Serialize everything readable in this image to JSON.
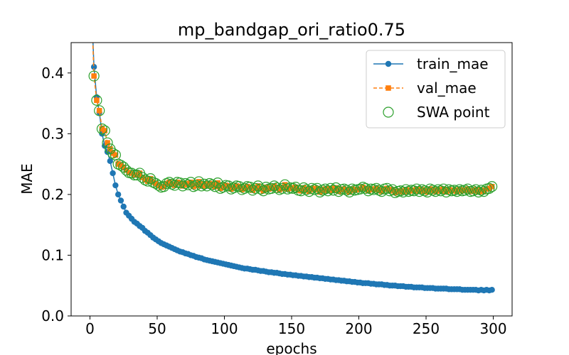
{
  "chart_data": {
    "type": "line",
    "title": "mp_bandgap_ori_ratio0.75",
    "xlabel": "epochs",
    "ylabel": "MAE",
    "xlim": [
      -14,
      314
    ],
    "ylim": [
      0.0,
      0.45
    ],
    "x_ticks": [
      0,
      50,
      100,
      150,
      200,
      250,
      300
    ],
    "x_tick_labels": [
      "0",
      "50",
      "100",
      "150",
      "200",
      "250",
      "300"
    ],
    "y_ticks": [
      0.0,
      0.1,
      0.2,
      0.3,
      0.4
    ],
    "y_tick_labels": [
      "0.0",
      "0.1",
      "0.2",
      "0.3",
      "0.4"
    ],
    "grid": false,
    "legend_position": "top-right",
    "colors": {
      "train": "#1f77b4",
      "val": "#ff7f0e",
      "swa": "#2ca02c"
    },
    "legend": {
      "train_label": "train_mae",
      "val_label": "val_mae",
      "swa_label": "SWA point"
    },
    "series": [
      {
        "name": "train_mae",
        "x": [
          1,
          3,
          5,
          7,
          9,
          11,
          13,
          15,
          17,
          19,
          21,
          23,
          25,
          27,
          29,
          31,
          33,
          35,
          37,
          39,
          41,
          43,
          45,
          47,
          49,
          51,
          53,
          55,
          57,
          59,
          61,
          63,
          65,
          67,
          69,
          71,
          73,
          75,
          77,
          79,
          81,
          83,
          85,
          87,
          89,
          91,
          93,
          95,
          97,
          99,
          101,
          103,
          105,
          107,
          109,
          111,
          113,
          115,
          117,
          119,
          121,
          123,
          125,
          127,
          129,
          131,
          133,
          135,
          137,
          139,
          141,
          143,
          145,
          147,
          149,
          151,
          153,
          155,
          157,
          159,
          161,
          163,
          165,
          167,
          169,
          171,
          173,
          175,
          177,
          179,
          181,
          183,
          185,
          187,
          189,
          191,
          193,
          195,
          197,
          199,
          201,
          203,
          205,
          207,
          209,
          211,
          213,
          215,
          217,
          219,
          221,
          223,
          225,
          227,
          229,
          231,
          233,
          235,
          237,
          239,
          241,
          243,
          245,
          247,
          249,
          251,
          253,
          255,
          257,
          259,
          261,
          263,
          265,
          267,
          269,
          271,
          273,
          275,
          277,
          279,
          281,
          283,
          285,
          287,
          289,
          291,
          293,
          295,
          297,
          299
        ],
        "y": [
          0.52,
          0.41,
          0.36,
          0.335,
          0.3,
          0.28,
          0.27,
          0.255,
          0.235,
          0.215,
          0.2,
          0.19,
          0.18,
          0.17,
          0.165,
          0.16,
          0.155,
          0.152,
          0.148,
          0.145,
          0.14,
          0.137,
          0.133,
          0.129,
          0.126,
          0.123,
          0.12,
          0.118,
          0.116,
          0.114,
          0.112,
          0.11,
          0.108,
          0.106,
          0.105,
          0.103,
          0.102,
          0.1,
          0.099,
          0.097,
          0.096,
          0.095,
          0.093,
          0.092,
          0.091,
          0.09,
          0.089,
          0.088,
          0.087,
          0.086,
          0.085,
          0.084,
          0.083,
          0.082,
          0.081,
          0.08,
          0.079,
          0.078,
          0.078,
          0.077,
          0.076,
          0.076,
          0.075,
          0.074,
          0.074,
          0.073,
          0.072,
          0.072,
          0.071,
          0.071,
          0.07,
          0.069,
          0.069,
          0.068,
          0.068,
          0.067,
          0.067,
          0.066,
          0.066,
          0.065,
          0.065,
          0.064,
          0.064,
          0.063,
          0.063,
          0.062,
          0.062,
          0.061,
          0.061,
          0.06,
          0.06,
          0.059,
          0.059,
          0.058,
          0.058,
          0.057,
          0.057,
          0.056,
          0.056,
          0.055,
          0.055,
          0.054,
          0.054,
          0.054,
          0.053,
          0.053,
          0.052,
          0.052,
          0.052,
          0.051,
          0.051,
          0.05,
          0.05,
          0.05,
          0.049,
          0.049,
          0.049,
          0.048,
          0.048,
          0.048,
          0.047,
          0.047,
          0.047,
          0.047,
          0.046,
          0.046,
          0.046,
          0.046,
          0.045,
          0.045,
          0.045,
          0.045,
          0.045,
          0.044,
          0.044,
          0.044,
          0.044,
          0.044,
          0.043,
          0.043,
          0.043,
          0.043,
          0.043,
          0.043,
          0.042,
          0.043,
          0.042,
          0.043,
          0.042,
          0.043
        ]
      },
      {
        "name": "val_mae",
        "x": [
          1,
          3,
          5,
          7,
          9,
          11,
          13,
          15,
          17,
          19,
          21,
          23,
          25,
          27,
          29,
          31,
          33,
          35,
          37,
          39,
          41,
          43,
          45,
          47,
          49,
          51,
          53,
          55,
          57,
          59,
          61,
          63,
          65,
          67,
          69,
          71,
          73,
          75,
          77,
          79,
          81,
          83,
          85,
          87,
          89,
          91,
          93,
          95,
          97,
          99,
          101,
          103,
          105,
          107,
          109,
          111,
          113,
          115,
          117,
          119,
          121,
          123,
          125,
          127,
          129,
          131,
          133,
          135,
          137,
          139,
          141,
          143,
          145,
          147,
          149,
          151,
          153,
          155,
          157,
          159,
          161,
          163,
          165,
          167,
          169,
          171,
          173,
          175,
          177,
          179,
          181,
          183,
          185,
          187,
          189,
          191,
          193,
          195,
          197,
          199,
          201,
          203,
          205,
          207,
          209,
          211,
          213,
          215,
          217,
          219,
          221,
          223,
          225,
          227,
          229,
          231,
          233,
          235,
          237,
          239,
          241,
          243,
          245,
          247,
          249,
          251,
          253,
          255,
          257,
          259,
          261,
          263,
          265,
          267,
          269,
          271,
          273,
          275,
          277,
          279,
          281,
          283,
          285,
          287,
          289,
          291,
          293,
          295,
          297,
          299
        ],
        "y": [
          0.52,
          0.395,
          0.355,
          0.338,
          0.308,
          0.305,
          0.285,
          0.275,
          0.268,
          0.265,
          0.25,
          0.248,
          0.245,
          0.24,
          0.236,
          0.235,
          0.232,
          0.232,
          0.235,
          0.228,
          0.224,
          0.222,
          0.226,
          0.22,
          0.218,
          0.215,
          0.212,
          0.213,
          0.218,
          0.22,
          0.217,
          0.215,
          0.22,
          0.219,
          0.214,
          0.218,
          0.216,
          0.22,
          0.213,
          0.215,
          0.221,
          0.214,
          0.217,
          0.214,
          0.218,
          0.216,
          0.213,
          0.219,
          0.21,
          0.212,
          0.215,
          0.214,
          0.209,
          0.211,
          0.214,
          0.213,
          0.208,
          0.21,
          0.213,
          0.212,
          0.207,
          0.21,
          0.214,
          0.209,
          0.206,
          0.212,
          0.209,
          0.21,
          0.214,
          0.211,
          0.208,
          0.21,
          0.216,
          0.209,
          0.211,
          0.21,
          0.212,
          0.207,
          0.206,
          0.211,
          0.208,
          0.205,
          0.21,
          0.208,
          0.21,
          0.204,
          0.207,
          0.209,
          0.206,
          0.21,
          0.207,
          0.211,
          0.205,
          0.208,
          0.209,
          0.207,
          0.204,
          0.209,
          0.207,
          0.208,
          0.209,
          0.212,
          0.21,
          0.206,
          0.209,
          0.208,
          0.21,
          0.207,
          0.205,
          0.209,
          0.21,
          0.206,
          0.208,
          0.203,
          0.205,
          0.206,
          0.204,
          0.208,
          0.205,
          0.207,
          0.206,
          0.209,
          0.205,
          0.208,
          0.206,
          0.204,
          0.209,
          0.207,
          0.205,
          0.208,
          0.206,
          0.209,
          0.204,
          0.208,
          0.206,
          0.207,
          0.205,
          0.208,
          0.206,
          0.207,
          0.209,
          0.205,
          0.206,
          0.208,
          0.204,
          0.207,
          0.205,
          0.209,
          0.21,
          0.213
        ]
      },
      {
        "name": "SWA point",
        "x": [
          1,
          3,
          5,
          7,
          9,
          11,
          13,
          15,
          17,
          19,
          21,
          23,
          25,
          27,
          29,
          31,
          33,
          35,
          37,
          39,
          41,
          43,
          45,
          47,
          49,
          51,
          53,
          55,
          57,
          59,
          61,
          63,
          65,
          67,
          69,
          71,
          73,
          75,
          77,
          79,
          81,
          83,
          85,
          87,
          89,
          91,
          93,
          95,
          97,
          99,
          101,
          103,
          105,
          107,
          109,
          111,
          113,
          115,
          117,
          119,
          121,
          123,
          125,
          127,
          129,
          131,
          133,
          135,
          137,
          139,
          141,
          143,
          145,
          147,
          149,
          151,
          153,
          155,
          157,
          159,
          161,
          163,
          165,
          167,
          169,
          171,
          173,
          175,
          177,
          179,
          181,
          183,
          185,
          187,
          189,
          191,
          193,
          195,
          197,
          199,
          201,
          203,
          205,
          207,
          209,
          211,
          213,
          215,
          217,
          219,
          221,
          223,
          225,
          227,
          229,
          231,
          233,
          235,
          237,
          239,
          241,
          243,
          245,
          247,
          249,
          251,
          253,
          255,
          257,
          259,
          261,
          263,
          265,
          267,
          269,
          271,
          273,
          275,
          277,
          279,
          281,
          283,
          285,
          287,
          289,
          291,
          293,
          295,
          297,
          299
        ],
        "y": [
          0.52,
          0.395,
          0.355,
          0.338,
          0.308,
          0.305,
          0.285,
          0.275,
          0.268,
          0.265,
          0.25,
          0.248,
          0.245,
          0.24,
          0.236,
          0.235,
          0.232,
          0.232,
          0.235,
          0.228,
          0.224,
          0.222,
          0.226,
          0.22,
          0.218,
          0.215,
          0.212,
          0.213,
          0.218,
          0.22,
          0.217,
          0.215,
          0.22,
          0.219,
          0.214,
          0.218,
          0.216,
          0.22,
          0.213,
          0.215,
          0.221,
          0.214,
          0.217,
          0.214,
          0.218,
          0.216,
          0.213,
          0.219,
          0.21,
          0.212,
          0.215,
          0.214,
          0.209,
          0.211,
          0.214,
          0.213,
          0.208,
          0.21,
          0.213,
          0.212,
          0.207,
          0.21,
          0.214,
          0.209,
          0.206,
          0.212,
          0.209,
          0.21,
          0.214,
          0.211,
          0.208,
          0.21,
          0.216,
          0.209,
          0.211,
          0.21,
          0.212,
          0.207,
          0.206,
          0.211,
          0.208,
          0.205,
          0.21,
          0.208,
          0.21,
          0.204,
          0.207,
          0.209,
          0.206,
          0.21,
          0.207,
          0.211,
          0.205,
          0.208,
          0.209,
          0.207,
          0.204,
          0.209,
          0.207,
          0.208,
          0.209,
          0.212,
          0.21,
          0.206,
          0.209,
          0.208,
          0.21,
          0.207,
          0.205,
          0.209,
          0.21,
          0.206,
          0.208,
          0.203,
          0.205,
          0.206,
          0.204,
          0.208,
          0.205,
          0.207,
          0.206,
          0.209,
          0.205,
          0.208,
          0.206,
          0.204,
          0.209,
          0.207,
          0.205,
          0.208,
          0.206,
          0.209,
          0.204,
          0.208,
          0.206,
          0.207,
          0.205,
          0.208,
          0.206,
          0.207,
          0.209,
          0.205,
          0.206,
          0.208,
          0.204,
          0.207,
          0.205,
          0.209,
          0.21,
          0.213
        ]
      }
    ]
  }
}
